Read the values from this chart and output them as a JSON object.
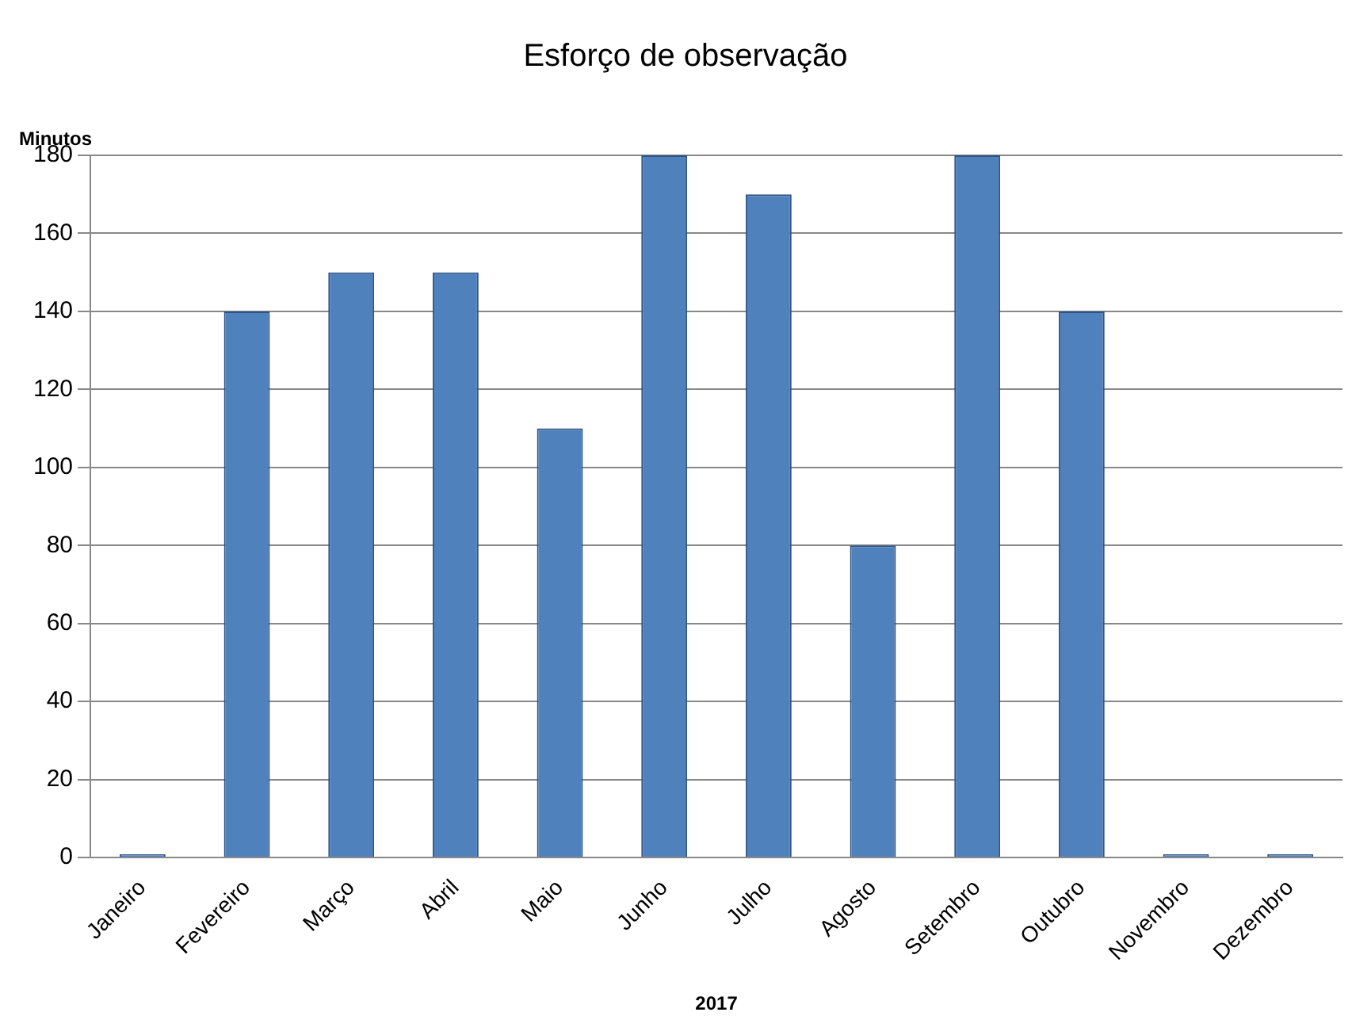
{
  "chart_data": {
    "type": "bar",
    "title": "Esforço de observação",
    "ylabel": "Minutos",
    "xlabel": "2017",
    "categories": [
      "Janeiro",
      "Fevereiro",
      "Março",
      "Abril",
      "Maio",
      "Junho",
      "Julho",
      "Agosto",
      "Setembro",
      "Outubro",
      "Novembro",
      "Dezembro"
    ],
    "values": [
      0,
      140,
      150,
      150,
      110,
      180,
      170,
      80,
      180,
      140,
      0,
      0
    ],
    "color": "#4f81bd",
    "ylim": [
      0,
      180
    ],
    "yticks": [
      0,
      20,
      40,
      60,
      80,
      100,
      120,
      140,
      160,
      180
    ],
    "grid": "y",
    "legend": false
  }
}
